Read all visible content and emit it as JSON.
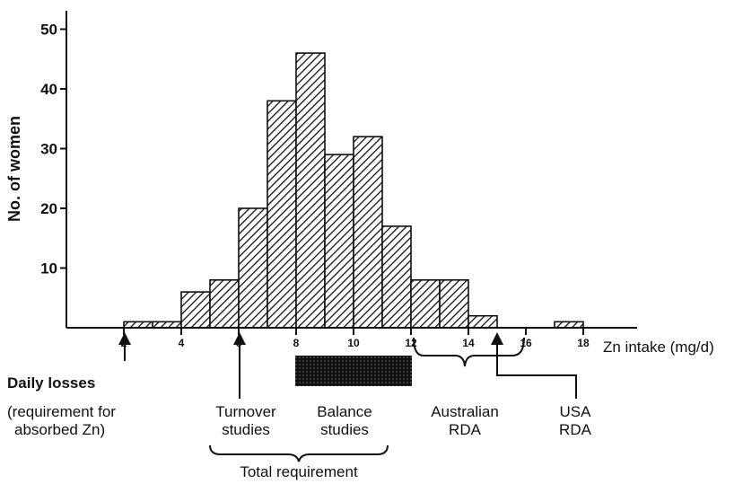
{
  "chart_data": {
    "type": "bar",
    "subtype": "histogram",
    "xlabel": "Zn intake (mg/d)",
    "ylabel": "No. of women",
    "xlim": [
      0,
      20
    ],
    "ylim": [
      0,
      50
    ],
    "bin_width": 1,
    "x_ticks": [
      2,
      4,
      6,
      8,
      10,
      12,
      14,
      16,
      18
    ],
    "x_tick_labels": [
      "2",
      "4",
      "6",
      "8",
      "10",
      "12",
      "14",
      "16",
      "18"
    ],
    "y_ticks": [
      10,
      20,
      30,
      40,
      50
    ],
    "y_tick_labels": [
      "10",
      "20",
      "30",
      "40",
      "50"
    ],
    "bins": [
      {
        "x0": 2,
        "x1": 3,
        "value": 1
      },
      {
        "x0": 3,
        "x1": 4,
        "value": 1
      },
      {
        "x0": 4,
        "x1": 5,
        "value": 6
      },
      {
        "x0": 5,
        "x1": 6,
        "value": 8
      },
      {
        "x0": 6,
        "x1": 7,
        "value": 20
      },
      {
        "x0": 7,
        "x1": 8,
        "value": 38
      },
      {
        "x0": 8,
        "x1": 9,
        "value": 46
      },
      {
        "x0": 9,
        "x1": 10,
        "value": 29
      },
      {
        "x0": 10,
        "x1": 11,
        "value": 32
      },
      {
        "x0": 11,
        "x1": 12,
        "value": 17
      },
      {
        "x0": 12,
        "x1": 13,
        "value": 8
      },
      {
        "x0": 13,
        "x1": 14,
        "value": 8
      },
      {
        "x0": 14,
        "x1": 15,
        "value": 2
      },
      {
        "x0": 15,
        "x1": 16,
        "value": 0
      },
      {
        "x0": 16,
        "x1": 17,
        "value": 0
      },
      {
        "x0": 17,
        "x1": 18,
        "value": 1
      }
    ],
    "fill_pattern": "diagonal-hatch",
    "bar_color": "#111111",
    "annotations": {
      "daily_losses": {
        "x": 2,
        "lines": [
          "Daily losses",
          "(requirement for",
          "absorbed Zn)"
        ]
      },
      "turnover": {
        "x": 6,
        "lines": [
          "Turnover",
          "studies"
        ]
      },
      "balance_band": {
        "x_from": 8,
        "x_to": 12,
        "color": "#111111"
      },
      "balance": {
        "lines": [
          "Balance",
          "studies"
        ]
      },
      "total_requirement": {
        "text": "Total requirement"
      },
      "australian_rda": {
        "x_from": 12,
        "x_to": 16,
        "lines": [
          "Australian",
          "RDA"
        ]
      },
      "usa_rda": {
        "x": 15,
        "lines": [
          "USA",
          "RDA"
        ]
      }
    }
  }
}
